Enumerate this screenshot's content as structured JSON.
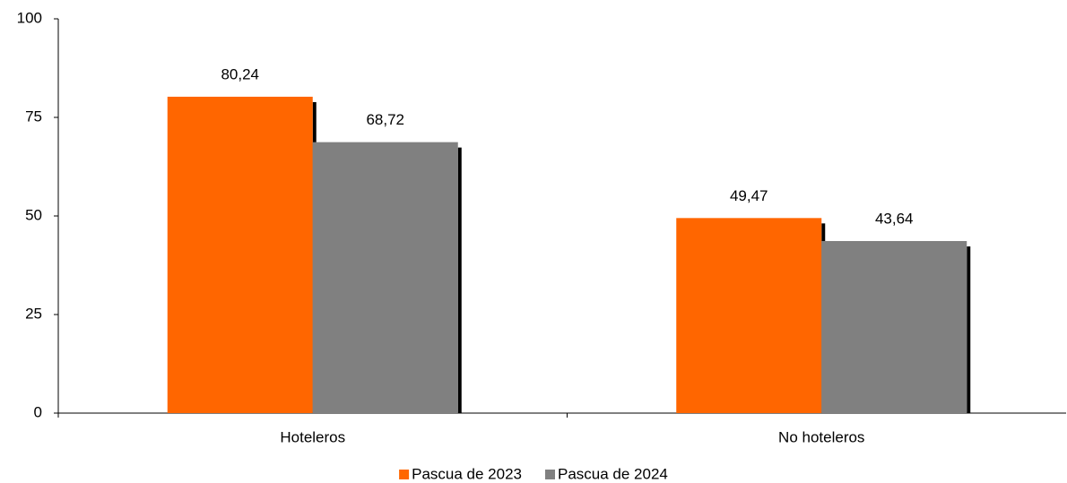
{
  "chart_data": {
    "type": "bar",
    "categories": [
      "Hoteleros",
      "No hoteleros"
    ],
    "series": [
      {
        "name": "Pascua de 2023",
        "color": "#ff6600",
        "values": [
          80.24,
          49.47
        ],
        "value_labels": [
          "80,24",
          "49,47"
        ]
      },
      {
        "name": "Pascua de 2024",
        "color": "#808080",
        "values": [
          68.72,
          43.64
        ],
        "value_labels": [
          "68,72",
          "43,64"
        ]
      }
    ],
    "ylim": [
      0,
      100
    ],
    "yticks": [
      0,
      25,
      50,
      75,
      100
    ],
    "grid": false,
    "legend": "bottom"
  }
}
